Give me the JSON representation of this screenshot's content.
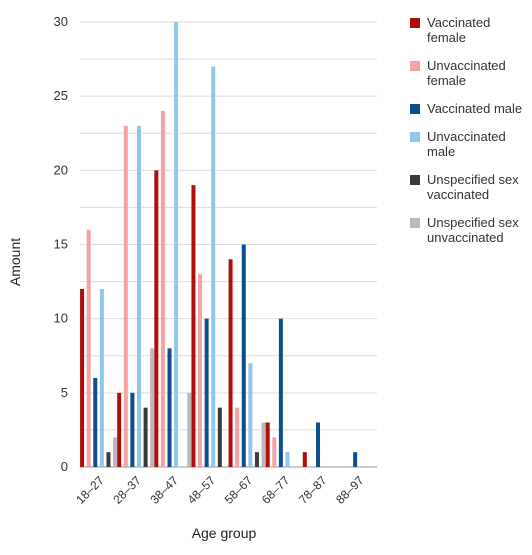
{
  "colors": {
    "vaccinated_female": "#b00d0d",
    "unvaccinated_female": "#f4a3a3",
    "vaccinated_male": "#0d4f8c",
    "unvaccinated_male": "#8ec8ea",
    "unspecified_vaccinated": "#3b3b3b",
    "unspecified_unvaccinated": "#b9b9b9",
    "grid": "#dddddd"
  },
  "chart_data": {
    "type": "bar",
    "xlabel": "Age group",
    "ylabel": "Amount",
    "ylim": [
      0,
      30
    ],
    "yticks": [
      0,
      5,
      10,
      15,
      20,
      25,
      30
    ],
    "grid": true,
    "legend_position": "right",
    "categories": [
      "18–27",
      "28–37",
      "38–47",
      "48–57",
      "58–67",
      "68–77",
      "78–87",
      "88–97"
    ],
    "series": [
      {
        "name": "Vaccinated female",
        "legend_lines": [
          "Vaccinated",
          "female"
        ],
        "color_key": "vaccinated_female",
        "values": [
          12,
          5,
          20,
          19,
          14,
          3,
          1,
          0
        ]
      },
      {
        "name": "Unvaccinated female",
        "legend_lines": [
          "Unvaccinated",
          "female"
        ],
        "color_key": "unvaccinated_female",
        "values": [
          16,
          23,
          24,
          13,
          4,
          2,
          0,
          0
        ]
      },
      {
        "name": "Vaccinated male",
        "legend_lines": [
          "Vaccinated male"
        ],
        "color_key": "vaccinated_male",
        "values": [
          6,
          5,
          8,
          10,
          15,
          10,
          3,
          1
        ]
      },
      {
        "name": "Unvaccinated male",
        "legend_lines": [
          "Unvaccinated",
          "male"
        ],
        "color_key": "unvaccinated_male",
        "values": [
          12,
          23,
          30,
          27,
          7,
          1,
          0,
          0
        ]
      },
      {
        "name": "Unspecified sex vaccinated",
        "legend_lines": [
          "Unspecified sex",
          "vaccinated"
        ],
        "color_key": "unspecified_vaccinated",
        "values": [
          1,
          4,
          0,
          4,
          1,
          0,
          0,
          0
        ]
      },
      {
        "name": "Unspecified sex unvaccinated",
        "legend_lines": [
          "Unspecified sex",
          "unvaccinated"
        ],
        "color_key": "unspecified_unvaccinated",
        "values": [
          2,
          8,
          5,
          0,
          3,
          0,
          0,
          0
        ]
      }
    ]
  }
}
